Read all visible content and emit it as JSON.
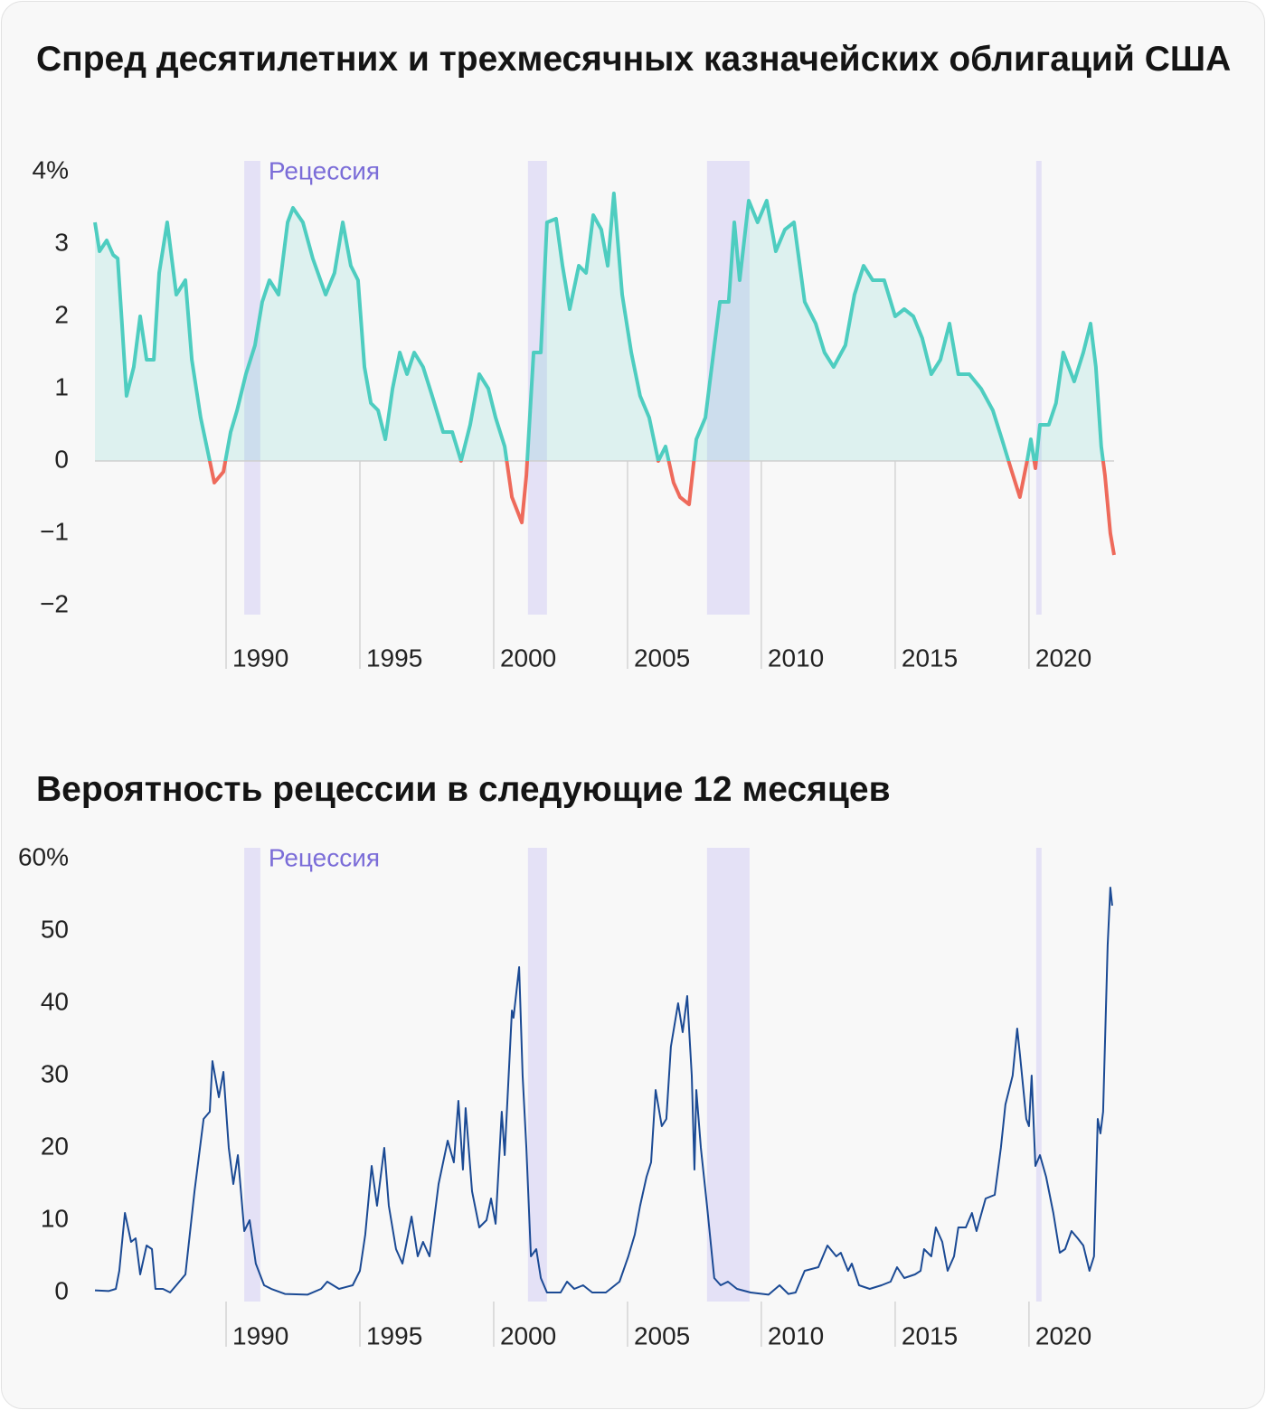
{
  "chart_data": [
    {
      "type": "area",
      "title": "Спред десятилетних и трехмесячных казначейских облигаций США",
      "annotation": "Рецессия",
      "recessions": [
        [
          1990.68,
          1991.28
        ],
        [
          2001.28,
          2001.99
        ],
        [
          2007.97,
          2009.56
        ],
        [
          2020.27,
          2020.47
        ]
      ],
      "recession_color": "#e4e1f6",
      "annotation_color": "#7b6dd8",
      "color": "#4ecdc0",
      "negative_color": "#ee6a5b",
      "x": [
        1985.1,
        1985.27,
        1985.54,
        1985.78,
        1985.95,
        1986.11,
        1986.28,
        1986.55,
        1986.79,
        1987.03,
        1987.3,
        1987.5,
        1987.8,
        1988.14,
        1988.48,
        1988.72,
        1989.05,
        1989.39,
        1989.56,
        1989.9,
        1990.17,
        1990.41,
        1990.74,
        1991.08,
        1991.35,
        1991.62,
        1991.96,
        1992.3,
        1992.5,
        1992.87,
        1993.24,
        1993.72,
        1994.05,
        1994.36,
        1994.66,
        1994.93,
        1995.17,
        1995.41,
        1995.68,
        1995.95,
        1996.22,
        1996.49,
        1996.76,
        1997.03,
        1997.36,
        1997.7,
        1998.11,
        1998.45,
        1998.78,
        1999.12,
        1999.46,
        1999.8,
        2000.07,
        2000.41,
        2000.68,
        2001.05,
        2001.22,
        2001.49,
        2001.76,
        2001.99,
        2002.33,
        2002.57,
        2002.84,
        2003.18,
        2003.45,
        2003.72,
        2004.02,
        2004.26,
        2004.49,
        2004.8,
        2005.14,
        2005.47,
        2005.81,
        2006.15,
        2006.42,
        2006.72,
        2006.96,
        2007.3,
        2007.57,
        2007.91,
        2008.18,
        2008.45,
        2008.78,
        2008.99,
        2009.19,
        2009.53,
        2009.86,
        2010.2,
        2010.54,
        2010.88,
        2011.22,
        2011.62,
        2012.03,
        2012.36,
        2012.7,
        2013.14,
        2013.48,
        2013.82,
        2014.16,
        2014.59,
        2015.0,
        2015.34,
        2015.68,
        2016.01,
        2016.35,
        2016.69,
        2017.03,
        2017.36,
        2017.77,
        2018.21,
        2018.65,
        2018.99,
        2019.32,
        2019.66,
        2019.93,
        2020.07,
        2020.24,
        2020.41,
        2020.74,
        2021.01,
        2021.28,
        2021.69,
        2022.03,
        2022.3,
        2022.5,
        2022.7,
        2022.84,
        2023.04,
        2023.18
      ],
      "values": [
        3.3,
        2.9,
        3.05,
        2.85,
        2.8,
        1.9,
        0.9,
        1.3,
        2.0,
        1.4,
        1.4,
        2.6,
        3.3,
        2.3,
        2.5,
        1.4,
        0.6,
        0.0,
        -0.3,
        -0.15,
        0.4,
        0.7,
        1.2,
        1.6,
        2.2,
        2.5,
        2.3,
        3.3,
        3.5,
        3.3,
        2.8,
        2.3,
        2.6,
        3.3,
        2.7,
        2.5,
        1.3,
        0.8,
        0.7,
        0.3,
        1.0,
        1.5,
        1.2,
        1.5,
        1.3,
        0.9,
        0.4,
        0.4,
        0.0,
        0.5,
        1.2,
        1.0,
        0.6,
        0.2,
        -0.5,
        -0.85,
        -0.2,
        1.5,
        1.5,
        3.3,
        3.35,
        2.7,
        2.1,
        2.7,
        2.6,
        3.4,
        3.2,
        2.7,
        3.7,
        2.3,
        1.5,
        0.9,
        0.6,
        0.0,
        0.2,
        -0.3,
        -0.5,
        -0.6,
        0.3,
        0.6,
        1.4,
        2.2,
        2.2,
        3.3,
        2.5,
        3.6,
        3.3,
        3.6,
        2.9,
        3.2,
        3.3,
        2.2,
        1.9,
        1.5,
        1.3,
        1.6,
        2.3,
        2.7,
        2.5,
        2.5,
        2.0,
        2.1,
        2.0,
        1.7,
        1.2,
        1.4,
        1.9,
        1.2,
        1.2,
        1.0,
        0.7,
        0.3,
        -0.1,
        -0.5,
        0.0,
        0.3,
        -0.1,
        0.5,
        0.5,
        0.8,
        1.5,
        1.1,
        1.5,
        1.9,
        1.3,
        0.2,
        -0.2,
        -1.0,
        -1.3
      ],
      "xlim": [
        1985.1,
        2023.18
      ],
      "ylim": [
        -2.125,
        4.15
      ],
      "xticks": [
        1990,
        1995,
        2000,
        2005,
        2010,
        2015,
        2020
      ],
      "yticks": [
        {
          "value": 4,
          "label": "4%"
        },
        3,
        2,
        1,
        0,
        {
          "value": -1,
          "label": "−1"
        },
        {
          "value": -2,
          "label": "−2"
        }
      ]
    },
    {
      "type": "line",
      "title": "Вероятность рецессии в следующие 12 месяцев",
      "annotation": "Рецессия",
      "recessions": [
        [
          1990.68,
          1991.28
        ],
        [
          2001.28,
          2001.99
        ],
        [
          2007.97,
          2009.56
        ],
        [
          2020.27,
          2020.47
        ]
      ],
      "recession_color": "#e4e1f6",
      "annotation_color": "#7b6dd8",
      "color": "#1b4a94",
      "x": [
        1985.1,
        1985.61,
        1985.88,
        1986.01,
        1986.22,
        1986.45,
        1986.62,
        1986.79,
        1987.03,
        1987.23,
        1987.36,
        1987.64,
        1987.91,
        1988.14,
        1988.48,
        1988.82,
        1989.16,
        1989.39,
        1989.49,
        1989.73,
        1989.9,
        1990.1,
        1990.27,
        1990.44,
        1990.68,
        1990.88,
        1991.11,
        1991.42,
        1991.69,
        1992.2,
        1993.04,
        1993.55,
        1993.78,
        1994.22,
        1994.73,
        1995.0,
        1995.2,
        1995.44,
        1995.64,
        1995.91,
        1996.08,
        1996.35,
        1996.59,
        1996.93,
        1997.16,
        1997.36,
        1997.6,
        1997.94,
        1998.28,
        1998.51,
        1998.68,
        1998.85,
        1998.95,
        1999.19,
        1999.46,
        1999.73,
        1999.9,
        2000.07,
        2000.3,
        2000.41,
        2000.68,
        2000.74,
        2000.95,
        2001.08,
        2001.22,
        2001.39,
        2001.59,
        2001.76,
        2001.99,
        2002.5,
        2002.74,
        2003.01,
        2003.34,
        2003.68,
        2004.19,
        2004.7,
        2005.03,
        2005.27,
        2005.47,
        2005.71,
        2005.88,
        2006.05,
        2006.28,
        2006.45,
        2006.62,
        2006.89,
        2007.06,
        2007.23,
        2007.4,
        2007.5,
        2007.57,
        2007.74,
        2007.97,
        2008.24,
        2008.48,
        2008.75,
        2009.09,
        2009.6,
        2010.27,
        2010.68,
        2011.01,
        2011.28,
        2011.62,
        2012.13,
        2012.47,
        2012.8,
        2012.97,
        2013.24,
        2013.38,
        2013.65,
        2014.05,
        2014.49,
        2014.83,
        2015.07,
        2015.34,
        2015.74,
        2015.95,
        2016.08,
        2016.35,
        2016.52,
        2016.76,
        2016.96,
        2017.2,
        2017.36,
        2017.64,
        2017.87,
        2018.04,
        2018.38,
        2018.72,
        2018.95,
        2019.12,
        2019.39,
        2019.56,
        2019.66,
        2019.9,
        2020.0,
        2020.1,
        2020.24,
        2020.41,
        2020.64,
        2020.91,
        2021.15,
        2021.35,
        2021.59,
        2021.82,
        2022.03,
        2022.26,
        2022.43,
        2022.57,
        2022.67,
        2022.77,
        2022.94,
        2023.04,
        2023.11
      ],
      "values": [
        0.3,
        0.2,
        0.5,
        3,
        11,
        7,
        7.5,
        2.5,
        6.5,
        6,
        0.5,
        0.5,
        0,
        1,
        2.5,
        14,
        24,
        25,
        32,
        27,
        30.5,
        20,
        15,
        19,
        8.5,
        10,
        4,
        1,
        0.5,
        -0.2,
        -0.3,
        0.5,
        1.5,
        0.5,
        1,
        3,
        8,
        17.5,
        12,
        20,
        12,
        6,
        4,
        10.5,
        5,
        7,
        5,
        15,
        21,
        18,
        26.5,
        17,
        25.5,
        14,
        9,
        10,
        13,
        9.5,
        25,
        19,
        39,
        38,
        45,
        30,
        20,
        5,
        6,
        2,
        0,
        0,
        1.5,
        0.5,
        1,
        0,
        0,
        1.5,
        5,
        8,
        12,
        16,
        18,
        28,
        23,
        24,
        34,
        40,
        36,
        41,
        30,
        17,
        28,
        20,
        12,
        2,
        1,
        1.5,
        0.5,
        0,
        -0.3,
        1,
        -0.2,
        0,
        3,
        3.5,
        6.5,
        5,
        5.5,
        3,
        4,
        1,
        0.5,
        1,
        1.5,
        3.5,
        2,
        2.5,
        3,
        6,
        5,
        9,
        7,
        3,
        5,
        9,
        9,
        11,
        8.5,
        13,
        13.5,
        20,
        26,
        30,
        36.5,
        33,
        24,
        23,
        30,
        17.5,
        19,
        16,
        11,
        5.5,
        6,
        8.5,
        7.5,
        6.5,
        3,
        5,
        24,
        22,
        25,
        48,
        56,
        53.5
      ],
      "xlim": [
        1985.1,
        2023.18
      ],
      "ylim": [
        -1.25,
        61.5
      ],
      "xticks": [
        1990,
        1995,
        2000,
        2005,
        2010,
        2015,
        2020
      ],
      "yticks": [
        {
          "value": 60,
          "label": "60%"
        },
        50,
        40,
        30,
        20,
        10,
        0
      ]
    }
  ]
}
